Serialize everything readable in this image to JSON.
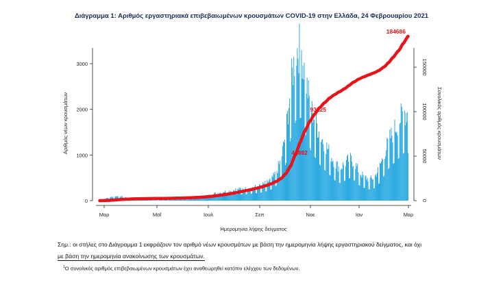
{
  "title": "Διάγραμμα 1: Αριθμός εργαστηριακά επιβεβαιωμένων κρουσμάτων COVID-19 στην Ελλάδα, 24 Φεβρουαρίου 2021",
  "note": {
    "line1": "Σημ.: οι στήλες στο Διάγραμμα 1 εκφράζουν τον αριθμό νέων κρουσμάτων με βάση την ημερομηνία λήψης εργαστηριακού δείγματος, και όχι",
    "line2": "με βάση την ημερομηνία ανακοίνωσης των κρουσμάτων."
  },
  "footnote": {
    "mark": "1",
    "text": "Ο συνολικός αριθμός επιβεβαιωμένων κρουσμάτων έχει αναθεωρηθεί κατόπιν ελέγχου των δεδομένων."
  },
  "chart_data": {
    "type": "bar",
    "title": "Διάγραμμα 1: Αριθμός εργαστηριακά επιβεβαιωμένων κρουσμάτων COVID-19 στην Ελλάδα, 24 Φεβρουαρίου 2021",
    "xlabel": "Ημερομηνία λήψης δείγματος",
    "ylabel": "Αριθμός νέων κρουσμάτων",
    "y2label": "Συνολικός αριθμός κρουσμάτων",
    "x_ticks": [
      "Μαρ",
      "Μαΐ",
      "Ιουλ",
      "Σεπ",
      "Νοε",
      "Ιαν",
      "Μαρ"
    ],
    "ylim": [
      0,
      3600
    ],
    "y_ticks": [
      0,
      1000,
      2000,
      3000
    ],
    "y2lim": [
      0,
      184686
    ],
    "y2_ticks": [
      0,
      50000,
      100000,
      150000
    ],
    "colors": {
      "bars": "#1aa3df",
      "cumulative": "#e8141b",
      "labels": "#e8141b"
    },
    "series": [
      {
        "kind": "bars",
        "x_range": [
          "2020-02-26",
          "2021-02-23"
        ],
        "values_weekly": [
          5,
          40,
          70,
          90,
          100,
          70,
          60,
          40,
          25,
          20,
          15,
          15,
          12,
          15,
          20,
          30,
          30,
          35,
          40,
          50,
          70,
          80,
          110,
          150,
          160,
          190,
          200,
          220,
          250,
          250,
          260,
          280,
          300,
          330,
          380,
          450,
          600,
          900,
          1500,
          2500,
          3200,
          3300,
          2600,
          2000,
          1700,
          1400,
          1200,
          1000,
          800,
          700,
          800,
          900,
          800,
          600,
          500,
          450,
          500,
          700,
          1000,
          1300,
          1500,
          1700,
          1900
        ]
      },
      {
        "kind": "line",
        "labels": [
          {
            "text": "184686"
          },
          {
            "text": "93225"
          },
          {
            "text": "46892"
          }
        ]
      }
    ]
  }
}
